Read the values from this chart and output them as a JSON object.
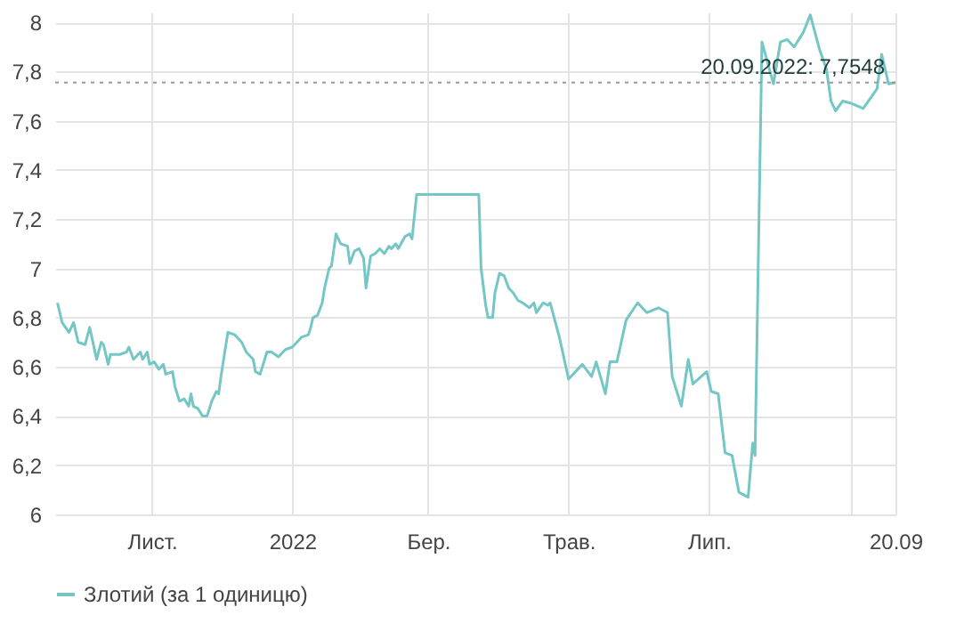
{
  "chart_data": {
    "type": "line",
    "x": [
      "2021-09-21",
      "2021-09-23",
      "2021-09-26",
      "2021-09-28",
      "2021-09-30",
      "2021-10-03",
      "2021-10-05",
      "2021-10-08",
      "2021-10-10",
      "2021-10-11",
      "2021-10-13",
      "2021-10-14",
      "2021-10-18",
      "2021-10-21",
      "2021-10-22",
      "2021-10-24",
      "2021-10-27",
      "2021-10-28",
      "2021-10-30",
      "2021-10-31",
      "2021-11-02",
      "2021-11-04",
      "2021-11-06",
      "2021-11-07",
      "2021-11-10",
      "2021-11-11",
      "2021-11-13",
      "2021-11-15",
      "2021-11-17",
      "2021-11-18",
      "2021-11-19",
      "2021-11-21",
      "2021-11-23",
      "2021-11-25",
      "2021-11-27",
      "2021-11-29",
      "2021-11-30",
      "2021-12-01",
      "2021-12-03",
      "2021-12-04",
      "2021-12-07",
      "2021-12-10",
      "2021-12-12",
      "2021-12-15",
      "2021-12-16",
      "2021-12-18",
      "2021-12-19",
      "2021-12-21",
      "2021-12-23",
      "2021-12-26",
      "2021-12-29",
      "2022-01-01",
      "2022-01-03",
      "2022-01-05",
      "2022-01-08",
      "2022-01-09",
      "2022-01-10",
      "2022-01-12",
      "2022-01-14",
      "2022-01-15",
      "2022-01-17",
      "2022-01-18",
      "2022-01-20",
      "2022-01-22",
      "2022-01-25",
      "2022-01-26",
      "2022-01-28",
      "2022-01-30",
      "2022-02-01",
      "2022-02-02",
      "2022-02-04",
      "2022-02-06",
      "2022-02-08",
      "2022-02-10",
      "2022-02-12",
      "2022-02-13",
      "2022-02-15",
      "2022-02-16",
      "2022-02-19",
      "2022-02-21",
      "2022-02-22",
      "2022-02-24",
      "2022-03-23",
      "2022-03-24",
      "2022-03-26",
      "2022-03-27",
      "2022-03-29",
      "2022-03-30",
      "2022-04-01",
      "2022-04-03",
      "2022-04-05",
      "2022-04-07",
      "2022-04-09",
      "2022-04-11",
      "2022-04-14",
      "2022-04-16",
      "2022-04-17",
      "2022-04-20",
      "2022-04-22",
      "2022-04-23",
      "2022-04-27",
      "2022-05-01",
      "2022-05-07",
      "2022-05-11",
      "2022-05-13",
      "2022-05-17",
      "2022-05-19",
      "2022-05-22",
      "2022-05-26",
      "2022-05-31",
      "2022-06-04",
      "2022-06-09",
      "2022-06-13",
      "2022-06-15",
      "2022-06-19",
      "2022-06-22",
      "2022-06-24",
      "2022-06-30",
      "2022-07-02",
      "2022-07-05",
      "2022-07-08",
      "2022-07-11",
      "2022-07-14",
      "2022-07-18",
      "2022-07-20",
      "2022-07-21",
      "2022-07-24",
      "2022-07-29",
      "2022-08-01",
      "2022-08-04",
      "2022-08-07",
      "2022-08-11",
      "2022-08-14",
      "2022-08-18",
      "2022-08-21",
      "2022-08-23",
      "2022-08-25",
      "2022-08-28",
      "2022-09-01",
      "2022-09-06",
      "2022-09-09",
      "2022-09-12",
      "2022-09-14",
      "2022-09-17",
      "2022-09-20"
    ],
    "series": [
      {
        "name": "Злотий (за 1 одиницю)",
        "color": "#74c7c4",
        "values": [
          6.86,
          6.78,
          6.74,
          6.78,
          6.7,
          6.69,
          6.76,
          6.63,
          6.7,
          6.69,
          6.61,
          6.65,
          6.65,
          6.66,
          6.68,
          6.63,
          6.66,
          6.63,
          6.66,
          6.61,
          6.62,
          6.59,
          6.61,
          6.57,
          6.58,
          6.52,
          6.46,
          6.47,
          6.44,
          6.49,
          6.44,
          6.43,
          6.4,
          6.4,
          6.46,
          6.5,
          6.49,
          6.56,
          6.68,
          6.74,
          6.73,
          6.7,
          6.66,
          6.63,
          6.58,
          6.57,
          6.6,
          6.66,
          6.66,
          6.64,
          6.67,
          6.68,
          6.7,
          6.72,
          6.73,
          6.76,
          6.8,
          6.81,
          6.86,
          6.92,
          7.0,
          7.01,
          7.14,
          7.1,
          7.09,
          7.02,
          7.07,
          7.08,
          7.04,
          6.92,
          7.05,
          7.06,
          7.08,
          7.06,
          7.09,
          7.08,
          7.1,
          7.08,
          7.13,
          7.14,
          7.12,
          7.3,
          7.3,
          7.0,
          6.85,
          6.8,
          6.8,
          6.9,
          6.98,
          6.97,
          6.92,
          6.9,
          6.87,
          6.86,
          6.84,
          6.86,
          6.82,
          6.86,
          6.85,
          6.86,
          6.72,
          6.55,
          6.61,
          6.56,
          6.62,
          6.49,
          6.62,
          6.62,
          6.79,
          6.86,
          6.82,
          6.84,
          6.82,
          6.56,
          6.44,
          6.63,
          6.53,
          6.58,
          6.5,
          6.49,
          6.25,
          6.24,
          6.09,
          6.07,
          6.29,
          6.24,
          7.92,
          7.75,
          7.92,
          7.93,
          7.9,
          7.96,
          8.03,
          7.89,
          7.81,
          7.68,
          7.64,
          7.68,
          7.67,
          7.65,
          7.69,
          7.73,
          7.87,
          7.75,
          7.7548
        ]
      }
    ],
    "xlim": [
      "2021-09-20",
      "2022-09-20"
    ],
    "xticks": [
      {
        "value": "2021-11-01",
        "label": "Лист."
      },
      {
        "value": "2022-01-01",
        "label": "2022"
      },
      {
        "value": "2022-03-01",
        "label": "Бер."
      },
      {
        "value": "2022-05-01",
        "label": "Трав."
      },
      {
        "value": "2022-07-01",
        "label": "Лип."
      },
      {
        "value": "2022-09-01",
        "label": null
      },
      {
        "value": "2022-09-20",
        "label": "20.09"
      }
    ],
    "ylim": [
      6,
      8.04
    ],
    "yticks": [
      6,
      {
        "value": 6.2,
        "label": "6,2"
      },
      {
        "value": 6.4,
        "label": "6,4"
      },
      {
        "value": 6.6,
        "label": "6,6"
      },
      {
        "value": 6.8,
        "label": "6,8"
      },
      7,
      {
        "value": 7.2,
        "label": "7,2"
      },
      {
        "value": 7.4,
        "label": "7,4"
      },
      {
        "value": 7.6,
        "label": "7,6"
      },
      {
        "value": 7.8,
        "label": "7,8"
      },
      8
    ],
    "ref_lines": [
      {
        "axis": "y",
        "value": 7.7548,
        "color": "#999999",
        "line_style": "dotted"
      }
    ],
    "annotations": [
      {
        "text": "20.09.2022: 7,7548",
        "x": "2022-09-20",
        "y": 7.7548
      }
    ],
    "grid": true,
    "legend": "bottom",
    "marker": "none",
    "line_style": "solid"
  }
}
